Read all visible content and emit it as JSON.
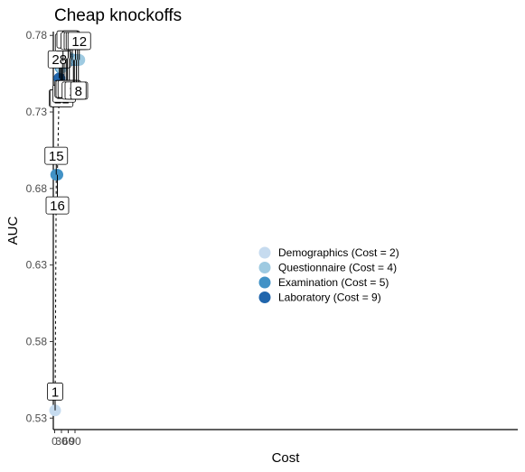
{
  "chart_data": {
    "type": "scatter",
    "title": "Cheap knockoffs",
    "xlabel": "Cost",
    "ylabel": "AUC",
    "xlim": [
      -6,
      508
    ],
    "ylim": [
      0.5225,
      0.7825
    ],
    "x_ticks": [
      0,
      30,
      60,
      90
    ],
    "y_ticks": [
      0.53,
      0.58,
      0.63,
      0.68,
      0.73,
      0.78
    ],
    "y_tick_labels": [
      "0.53",
      "0.58",
      "0.63",
      "0.68",
      "0.73",
      "0.78"
    ],
    "grid": false,
    "legend_position": "center-right",
    "categories": [
      {
        "name": "Demographics (Cost = 2)",
        "color": "#c6dbef"
      },
      {
        "name": "Questionnaire (Cost = 4)",
        "color": "#9ecae1"
      },
      {
        "name": "Examination (Cost = 5)",
        "color": "#4292c6"
      },
      {
        "name": "Laboratory (Cost = 9)",
        "color": "#2166ac"
      }
    ],
    "points": [
      {
        "x": 2,
        "y": 0.535,
        "cat": 0,
        "label": "1",
        "label_pos": "above"
      },
      {
        "x": 7,
        "y": 0.689,
        "cat": 2,
        "label": "15",
        "label_pos": "above"
      },
      {
        "x": 12,
        "y": 0.689,
        "cat": 2,
        "label": "16",
        "label_pos": "below"
      },
      {
        "x": 21,
        "y": 0.752,
        "cat": 3,
        "label": "28",
        "label_pos": "above"
      },
      {
        "x": 26,
        "y": 0.759,
        "cat": 2,
        "label": "22",
        "label_pos": "below"
      },
      {
        "x": 31,
        "y": 0.759,
        "cat": 1,
        "label": "21",
        "label_pos": "below"
      },
      {
        "x": 35,
        "y": 0.762,
        "cat": 1,
        "label": "4",
        "label_pos": "below"
      },
      {
        "x": 37,
        "y": 0.763,
        "cat": 0,
        "label": "3",
        "label_pos": "above"
      },
      {
        "x": 42,
        "y": 0.762,
        "cat": 2,
        "label": "20",
        "label_pos": "below"
      },
      {
        "x": 51,
        "y": 0.765,
        "cat": 3,
        "label": "27",
        "label_pos": "below"
      },
      {
        "x": 56,
        "y": 0.765,
        "cat": 2,
        "label": "23",
        "label_pos": "below"
      },
      {
        "x": 60,
        "y": 0.765,
        "cat": 1,
        "label": "11",
        "label_pos": "above"
      },
      {
        "x": 65,
        "y": 0.765,
        "cat": 2,
        "label": "25",
        "label_pos": "below"
      },
      {
        "x": 69,
        "y": 0.765,
        "cat": 1,
        "label": "9",
        "label_pos": "above"
      },
      {
        "x": 78,
        "y": 0.764,
        "cat": 3,
        "label": "29",
        "label_pos": "above"
      },
      {
        "x": 83,
        "y": 0.764,
        "cat": 2,
        "label": "26",
        "label_pos": "below"
      },
      {
        "x": 87,
        "y": 0.764,
        "cat": 1,
        "label": "5",
        "label_pos": "below"
      },
      {
        "x": 92,
        "y": 0.764,
        "cat": 2,
        "label": "18",
        "label_pos": "above"
      },
      {
        "x": 96,
        "y": 0.764,
        "cat": 1,
        "label": "13",
        "label_pos": "below"
      },
      {
        "x": 101,
        "y": 0.764,
        "cat": 2,
        "label": "24",
        "label_pos": "above"
      },
      {
        "x": 105,
        "y": 0.764,
        "cat": 1,
        "label": "8",
        "label_pos": "below"
      },
      {
        "x": 109,
        "y": 0.764,
        "cat": 1,
        "label": "12",
        "label_pos": "above"
      }
    ]
  }
}
